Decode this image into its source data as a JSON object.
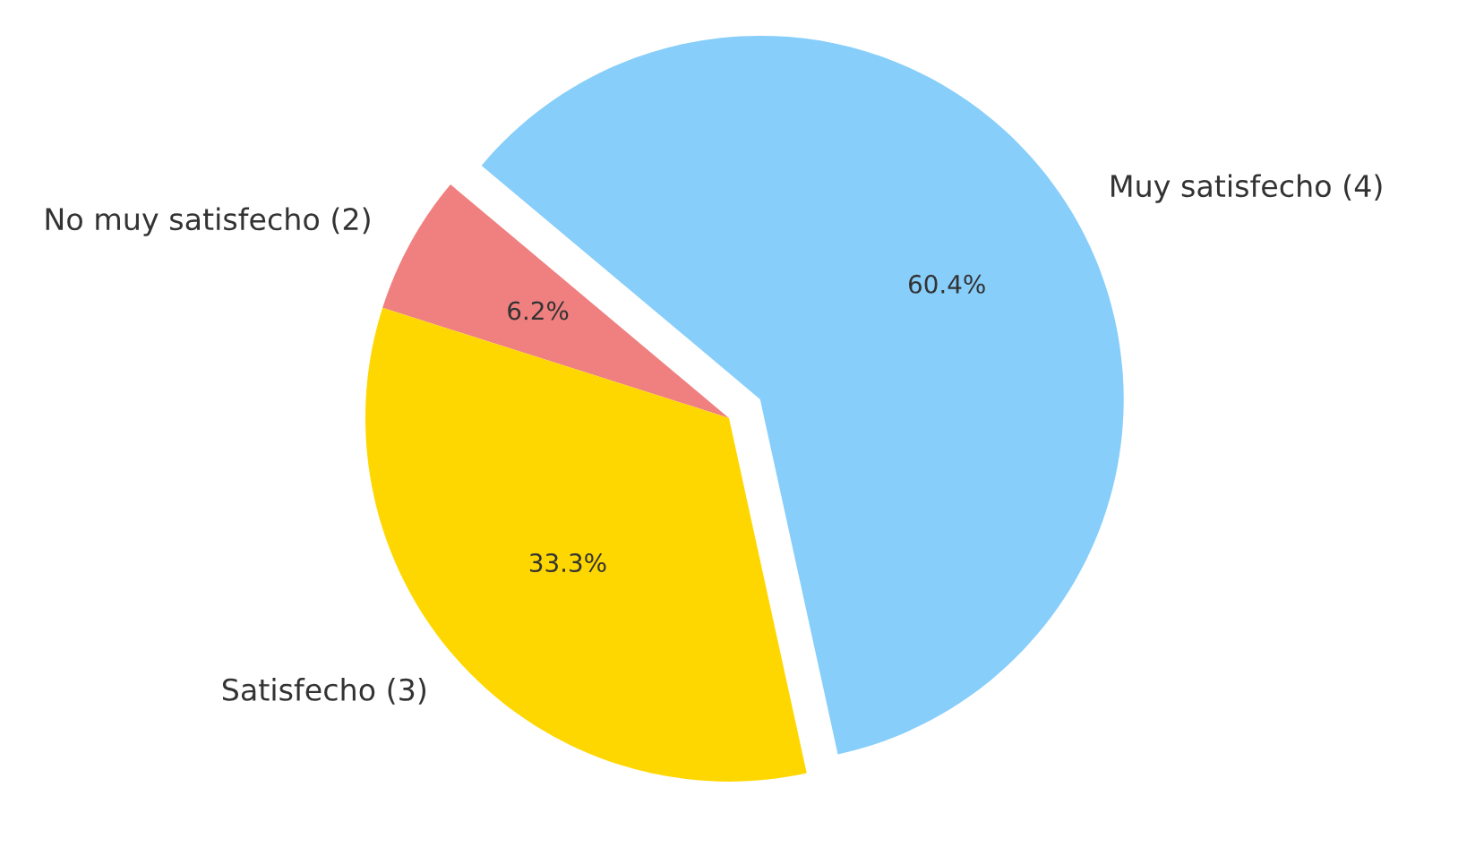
{
  "chart_data": {
    "type": "pie",
    "categories": [
      "No muy satisfecho (2)",
      "Satisfecho (3)",
      "Muy satisfecho (4)"
    ],
    "values": [
      6.2,
      33.3,
      60.4
    ],
    "value_labels": [
      "6.2%",
      "33.3%",
      "60.4%"
    ],
    "colors": [
      "#f08080",
      "#ffd700",
      "#87cefa"
    ],
    "legend": false
  }
}
